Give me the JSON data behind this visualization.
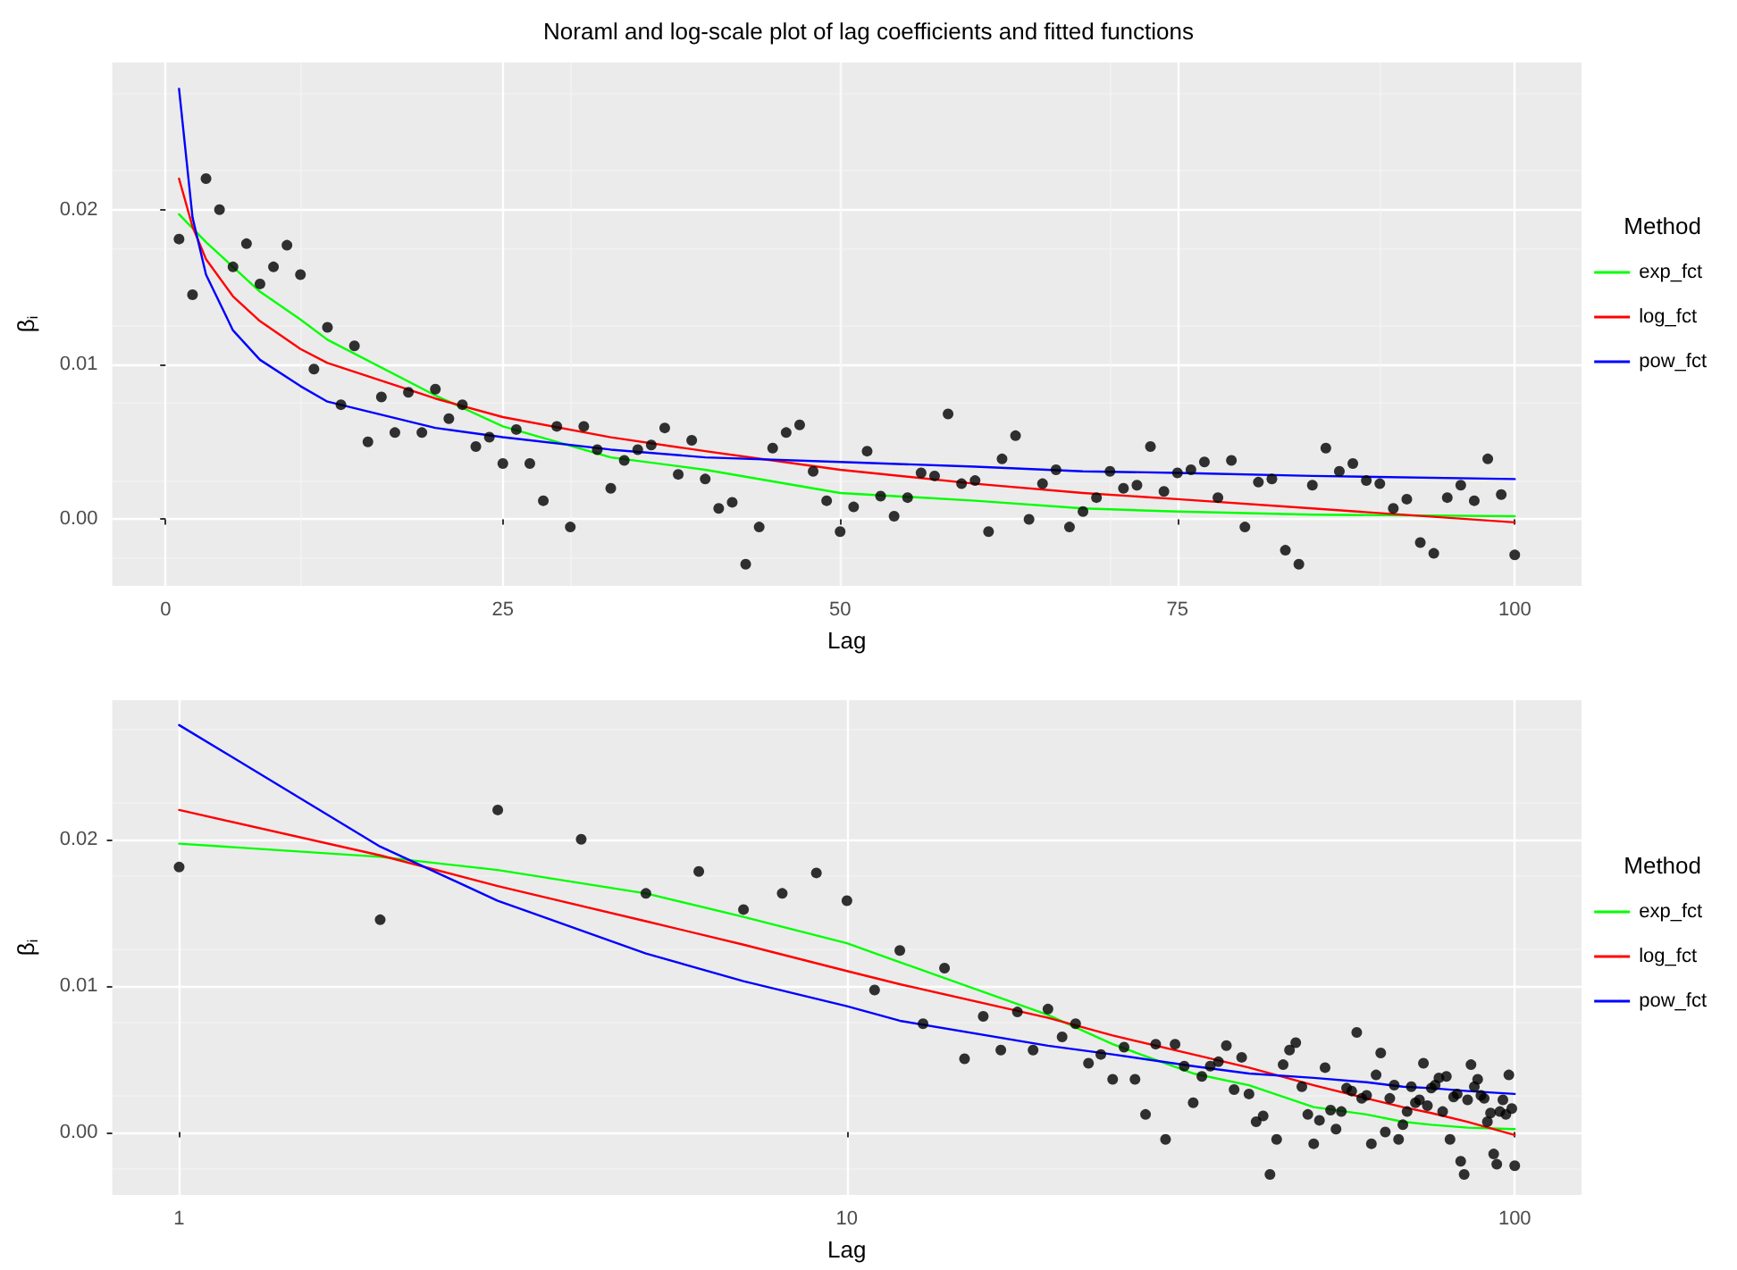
{
  "chart_data": [
    {
      "type": "scatter",
      "title": "Noraml and log-scale plot of lag coefficients and fitted functions",
      "xlabel": "Lag",
      "ylabel": "β$_{i}$",
      "legend_title": "Method",
      "legend": "right",
      "grid": true,
      "xlim": [
        -3.95,
        104.95
      ],
      "xticks": [
        0,
        25,
        50,
        75,
        100
      ],
      "ylim": [
        -0.0043,
        0.0295
      ],
      "yticks": [
        {
          "value": 0,
          "label": "0.00"
        },
        {
          "value": 0.01,
          "label": "0.01"
        },
        {
          "value": 0.02,
          "label": "0.02"
        }
      ],
      "series": [
        {
          "marker": "circle",
          "color": "#000000",
          "x": [
            1,
            2,
            3,
            4,
            5,
            6,
            7,
            8,
            9,
            10,
            11,
            12,
            13,
            14,
            15,
            16,
            17,
            18,
            19,
            20,
            21,
            22,
            23,
            24,
            25,
            26,
            27,
            28,
            29,
            30,
            31,
            32,
            33,
            34,
            35,
            36,
            37,
            38,
            39,
            40,
            41,
            42,
            43,
            44,
            45,
            46,
            47,
            48,
            49,
            50,
            51,
            52,
            53,
            54,
            55,
            56,
            57,
            58,
            59,
            60,
            61,
            62,
            63,
            64,
            65,
            66,
            67,
            68,
            69,
            70,
            71,
            72,
            73,
            74,
            75,
            76,
            77,
            78,
            79,
            80,
            81,
            82,
            83,
            84,
            85,
            86,
            87,
            88,
            89,
            90,
            91,
            92,
            93,
            94,
            95,
            96,
            97,
            98,
            99,
            100
          ],
          "values": [
            0.0181,
            0.0145,
            0.022,
            0.02,
            0.0163,
            0.0178,
            0.0152,
            0.0163,
            0.0177,
            0.0158,
            0.0097,
            0.0124,
            0.0074,
            0.0112,
            0.005,
            0.0079,
            0.0056,
            0.0082,
            0.0056,
            0.0084,
            0.0065,
            0.0074,
            0.0047,
            0.0053,
            0.0036,
            0.0058,
            0.0036,
            0.0012,
            0.006,
            -0.0005,
            0.006,
            0.0045,
            0.002,
            0.0038,
            0.0045,
            0.0048,
            0.0059,
            0.0029,
            0.0051,
            0.0026,
            0.0007,
            0.0011,
            -0.0029,
            -0.0005,
            0.0046,
            0.0056,
            0.0061,
            0.0031,
            0.0012,
            -0.0008,
            0.0008,
            0.0044,
            0.0015,
            0.0002,
            0.0014,
            0.003,
            0.0028,
            0.0068,
            0.0023,
            0.0025,
            -0.0008,
            0.0039,
            0.0054,
            0,
            0.0023,
            0.0032,
            -0.0005,
            0.0005,
            0.0014,
            0.0031,
            0.002,
            0.0022,
            0.0047,
            0.0018,
            0.003,
            0.0032,
            0.0037,
            0.0014,
            0.0038,
            -0.0005,
            0.0024,
            0.0026,
            -0.002,
            -0.0029,
            0.0022,
            0.0046,
            0.0031,
            0.0036,
            0.0025,
            0.0023,
            0.0007,
            0.0013,
            -0.0015,
            -0.0022,
            0.0014,
            0.0022,
            0.0012,
            0.0039,
            0.0016,
            -0.0023
          ]
        },
        {
          "type": "line",
          "name": "exp_fct",
          "color": "#00ff00",
          "x": [
            1,
            2,
            3,
            5,
            7,
            10,
            12,
            20,
            25,
            33,
            40,
            50,
            60,
            68,
            75,
            85,
            100
          ],
          "values": [
            0.0197,
            0.0188,
            0.0179,
            0.0163,
            0.0147,
            0.0129,
            0.0116,
            0.008,
            0.006,
            0.004,
            0.0032,
            0.0017,
            0.0012,
            0.0007,
            0.0005,
            0.0003,
            0.0002
          ]
        },
        {
          "type": "line",
          "name": "log_fct",
          "color": "#ff0000",
          "x": [
            1,
            2,
            3,
            5,
            7,
            10,
            12,
            20,
            25,
            33,
            40,
            50,
            60,
            68,
            75,
            85,
            100
          ],
          "values": [
            0.022,
            0.0189,
            0.0168,
            0.0144,
            0.0128,
            0.011,
            0.0101,
            0.0078,
            0.0066,
            0.0053,
            0.0044,
            0.0032,
            0.0023,
            0.0017,
            0.0013,
            0.0007,
            -0.0002
          ]
        },
        {
          "type": "line",
          "name": "pow_fct",
          "color": "#0000ff",
          "x": [
            1,
            2,
            3,
            5,
            7,
            10,
            12,
            20,
            25,
            33,
            40,
            50,
            60,
            68,
            75,
            85,
            100
          ],
          "values": [
            0.0278,
            0.0195,
            0.0158,
            0.0122,
            0.0103,
            0.0086,
            0.0076,
            0.0059,
            0.0053,
            0.0045,
            0.004,
            0.0037,
            0.0034,
            0.0031,
            0.003,
            0.0028,
            0.0026
          ]
        }
      ]
    },
    {
      "type": "scatter",
      "xlabel": "Lag",
      "ylabel": "β$_{i}$",
      "legend_title": "Method",
      "legend": "right",
      "grid": true,
      "log": "x",
      "xlim": [
        0.794,
        125.9
      ],
      "xticks": [
        1,
        10,
        100
      ],
      "ylim": [
        -0.0043,
        0.0295
      ],
      "yticks": [
        {
          "value": 0,
          "label": "0.00"
        },
        {
          "value": 0.01,
          "label": "0.01"
        },
        {
          "value": 0.02,
          "label": "0.02"
        }
      ],
      "series": [
        {
          "marker": "circle",
          "color": "#000000",
          "x": [
            1,
            2,
            3,
            4,
            5,
            6,
            7,
            8,
            9,
            10,
            11,
            12,
            13,
            14,
            15,
            16,
            17,
            18,
            19,
            20,
            21,
            22,
            23,
            24,
            25,
            26,
            27,
            28,
            29,
            30,
            31,
            32,
            33,
            34,
            35,
            36,
            37,
            38,
            39,
            40,
            41,
            42,
            43,
            44,
            45,
            46,
            47,
            48,
            49,
            50,
            51,
            52,
            53,
            54,
            55,
            56,
            57,
            58,
            59,
            60,
            61,
            62,
            63,
            64,
            65,
            66,
            67,
            68,
            69,
            70,
            71,
            72,
            73,
            74,
            75,
            76,
            77,
            78,
            79,
            80,
            81,
            82,
            83,
            84,
            85,
            86,
            87,
            88,
            89,
            90,
            91,
            92,
            93,
            94,
            95,
            96,
            97,
            98,
            99,
            100
          ],
          "values": [
            0.0181,
            0.0145,
            0.022,
            0.02,
            0.0163,
            0.0178,
            0.0152,
            0.0163,
            0.0177,
            0.0158,
            0.0097,
            0.0124,
            0.0074,
            0.0112,
            0.005,
            0.0079,
            0.0056,
            0.0082,
            0.0056,
            0.0084,
            0.0065,
            0.0074,
            0.0047,
            0.0053,
            0.0036,
            0.0058,
            0.0036,
            0.0012,
            0.006,
            -0.0005,
            0.006,
            0.0045,
            0.002,
            0.0038,
            0.0045,
            0.0048,
            0.0059,
            0.0029,
            0.0051,
            0.0026,
            0.0007,
            0.0011,
            -0.0029,
            -0.0005,
            0.0046,
            0.0056,
            0.0061,
            0.0031,
            0.0012,
            -0.0008,
            0.0008,
            0.0044,
            0.0015,
            0.0002,
            0.0014,
            0.003,
            0.0028,
            0.0068,
            0.0023,
            0.0025,
            -0.0008,
            0.0039,
            0.0054,
            0,
            0.0023,
            0.0032,
            -0.0005,
            0.0005,
            0.0014,
            0.0031,
            0.002,
            0.0022,
            0.0047,
            0.0018,
            0.003,
            0.0032,
            0.0037,
            0.0014,
            0.0038,
            -0.0005,
            0.0024,
            0.0026,
            -0.002,
            -0.0029,
            0.0022,
            0.0046,
            0.0031,
            0.0036,
            0.0025,
            0.0023,
            0.0007,
            0.0013,
            -0.0015,
            -0.0022,
            0.0014,
            0.0022,
            0.0012,
            0.0039,
            0.0016,
            -0.0023
          ]
        },
        {
          "type": "line",
          "name": "exp_fct",
          "color": "#00ff00",
          "x": [
            1,
            2,
            3,
            5,
            7,
            10,
            12,
            20,
            25,
            33,
            40,
            50,
            60,
            68,
            75,
            85,
            100
          ],
          "values": [
            0.0197,
            0.0188,
            0.0179,
            0.0163,
            0.0147,
            0.0129,
            0.0116,
            0.008,
            0.006,
            0.004,
            0.0032,
            0.0017,
            0.0012,
            0.0007,
            0.0005,
            0.0003,
            0.0002
          ]
        },
        {
          "type": "line",
          "name": "log_fct",
          "color": "#ff0000",
          "x": [
            1,
            2,
            3,
            5,
            7,
            10,
            12,
            20,
            25,
            33,
            40,
            50,
            60,
            68,
            75,
            85,
            100
          ],
          "values": [
            0.022,
            0.0189,
            0.0168,
            0.0144,
            0.0128,
            0.011,
            0.0101,
            0.0078,
            0.0066,
            0.0053,
            0.0044,
            0.0032,
            0.0023,
            0.0017,
            0.0013,
            0.0007,
            -0.0002
          ]
        },
        {
          "type": "line",
          "name": "pow_fct",
          "color": "#0000ff",
          "x": [
            1,
            2,
            3,
            5,
            7,
            10,
            12,
            20,
            25,
            33,
            40,
            50,
            60,
            68,
            75,
            85,
            100
          ],
          "values": [
            0.0278,
            0.0195,
            0.0158,
            0.0122,
            0.0103,
            0.0086,
            0.0076,
            0.0059,
            0.0053,
            0.0045,
            0.004,
            0.0037,
            0.0034,
            0.0031,
            0.003,
            0.0028,
            0.0026
          ]
        }
      ]
    }
  ]
}
